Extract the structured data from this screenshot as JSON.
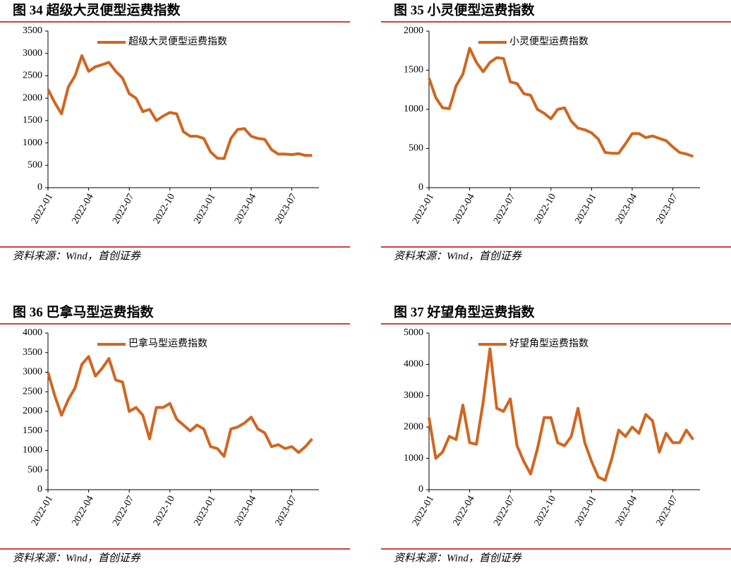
{
  "chart_data": [
    {
      "type": "line",
      "title": "图 34 超级大灵便型运费指数",
      "source": "资料来源：Wind，首创证券",
      "categories": [
        "2022-01",
        null,
        null,
        null,
        null,
        null,
        "2022-04",
        null,
        null,
        null,
        null,
        null,
        "2022-07",
        null,
        null,
        null,
        null,
        null,
        "2022-10",
        null,
        null,
        null,
        null,
        null,
        "2023-01",
        null,
        null,
        null,
        null,
        null,
        "2023-04",
        null,
        null,
        null,
        null,
        null,
        "2023-07",
        null,
        null,
        null
      ],
      "series": [
        {
          "name": "超级大灵便型运费指数",
          "color": "#d0661f",
          "values": [
            2200,
            1900,
            1650,
            2250,
            2500,
            2950,
            2600,
            2700,
            2750,
            2800,
            2600,
            2450,
            2100,
            2000,
            1700,
            1750,
            1500,
            1600,
            1680,
            1650,
            1250,
            1150,
            1150,
            1100,
            800,
            660,
            650,
            1100,
            1300,
            1320,
            1150,
            1100,
            1080,
            850,
            750,
            750,
            740,
            760,
            720,
            720
          ]
        }
      ],
      "ylim": [
        0,
        3500
      ],
      "yticks": [
        0,
        500,
        1000,
        1500,
        2000,
        2500,
        3000,
        3500
      ]
    },
    {
      "type": "line",
      "title": "图 35 小灵便型运费指数",
      "source": "资料来源：Wind，首创证券",
      "categories": [
        "2022-01",
        null,
        null,
        null,
        null,
        null,
        "2022-04",
        null,
        null,
        null,
        null,
        null,
        "2022-07",
        null,
        null,
        null,
        null,
        null,
        "2022-10",
        null,
        null,
        null,
        null,
        null,
        "2023-01",
        null,
        null,
        null,
        null,
        null,
        "2023-04",
        null,
        null,
        null,
        null,
        null,
        "2023-07",
        null,
        null,
        null
      ],
      "series": [
        {
          "name": "小灵便型运费指数",
          "color": "#d0661f",
          "values": [
            1400,
            1150,
            1020,
            1010,
            1300,
            1450,
            1780,
            1600,
            1480,
            1600,
            1660,
            1650,
            1350,
            1330,
            1200,
            1180,
            1000,
            950,
            880,
            1000,
            1020,
            850,
            760,
            740,
            700,
            620,
            450,
            440,
            440,
            560,
            690,
            690,
            640,
            660,
            630,
            600,
            520,
            450,
            430,
            400
          ]
        }
      ],
      "ylim": [
        0,
        2000
      ],
      "yticks": [
        0,
        500,
        1000,
        1500,
        2000
      ]
    },
    {
      "type": "line",
      "title": "图 36 巴拿马型运费指数",
      "source": "资料来源：Wind，首创证券",
      "categories": [
        "2022-01",
        null,
        null,
        null,
        null,
        null,
        "2022-04",
        null,
        null,
        null,
        null,
        null,
        "2022-07",
        null,
        null,
        null,
        null,
        null,
        "2022-10",
        null,
        null,
        null,
        null,
        null,
        "2023-01",
        null,
        null,
        null,
        null,
        null,
        "2023-04",
        null,
        null,
        null,
        null,
        null,
        "2023-07",
        null,
        null,
        null
      ],
      "series": [
        {
          "name": "巴拿马型运费指数",
          "color": "#d0661f",
          "values": [
            3000,
            2400,
            1900,
            2300,
            2600,
            3200,
            3400,
            2900,
            3100,
            3350,
            2800,
            2750,
            2000,
            2100,
            1900,
            1300,
            2100,
            2100,
            2200,
            1800,
            1650,
            1500,
            1650,
            1550,
            1100,
            1050,
            850,
            1550,
            1600,
            1700,
            1850,
            1550,
            1450,
            1100,
            1150,
            1050,
            1100,
            950,
            1100,
            1300
          ]
        }
      ],
      "ylim": [
        0,
        4000
      ],
      "yticks": [
        0,
        500,
        1000,
        1500,
        2000,
        2500,
        3000,
        3500,
        4000
      ]
    },
    {
      "type": "line",
      "title": "图 37 好望角型运费指数",
      "source": "资料来源：Wind，首创证券",
      "categories": [
        "2022-01",
        null,
        null,
        null,
        null,
        null,
        "2022-04",
        null,
        null,
        null,
        null,
        null,
        "2022-07",
        null,
        null,
        null,
        null,
        null,
        "2022-10",
        null,
        null,
        null,
        null,
        null,
        "2023-01",
        null,
        null,
        null,
        null,
        null,
        "2023-04",
        null,
        null,
        null,
        null,
        null,
        "2023-07",
        null,
        null,
        null
      ],
      "series": [
        {
          "name": "好望角型运费指数",
          "color": "#d0661f",
          "values": [
            2300,
            1000,
            1200,
            1700,
            1600,
            2700,
            1500,
            1450,
            2800,
            4500,
            2600,
            2500,
            2900,
            1400,
            900,
            500,
            1300,
            2300,
            2300,
            1500,
            1400,
            1700,
            2600,
            1500,
            900,
            400,
            300,
            1000,
            1900,
            1700,
            2000,
            1800,
            2400,
            2200,
            1200,
            1800,
            1500,
            1500,
            1900,
            1600
          ]
        }
      ],
      "ylim": [
        0,
        5000
      ],
      "yticks": [
        0,
        1000,
        2000,
        3000,
        4000,
        5000
      ]
    }
  ]
}
